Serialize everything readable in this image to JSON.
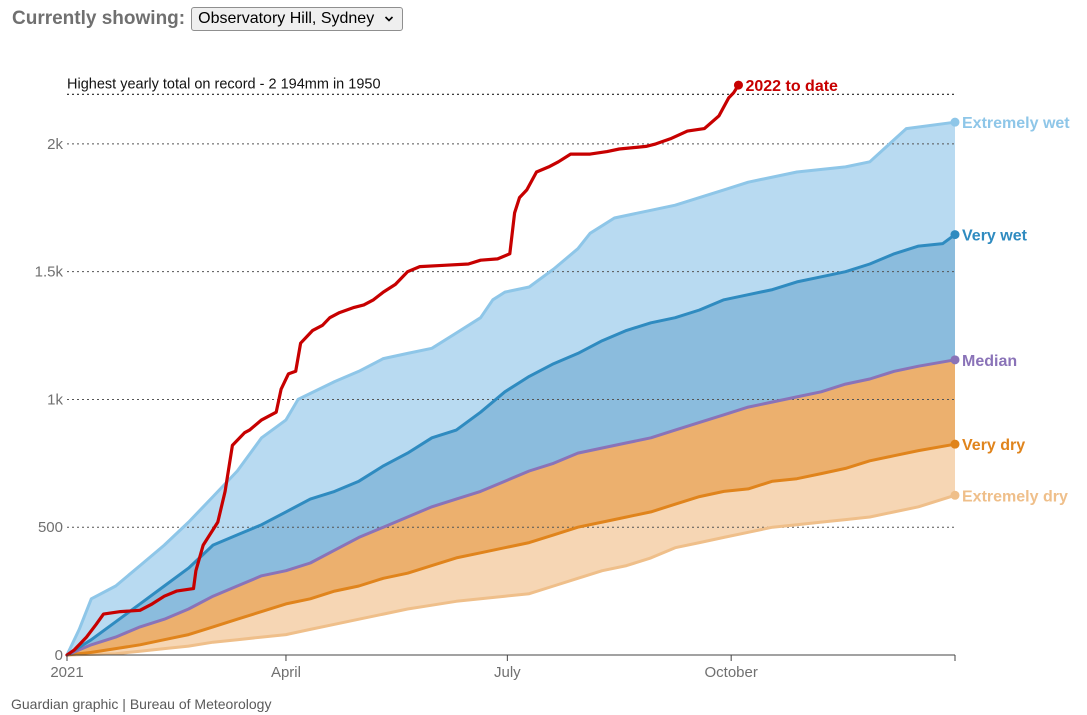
{
  "header": {
    "label": "Currently showing:",
    "selected_location": "Observatory Hill, Sydney"
  },
  "source": "Guardian graphic | Bureau of Meteorology",
  "colors": {
    "extremely_wet": "#8ec6e8",
    "extremely_wet_fill": "#b8daf1",
    "very_wet": "#2f8bc0",
    "very_wet_fill": "#8bbcdd",
    "median": "#8a73b8",
    "very_dry": "#e0841c",
    "very_dry_fill": "#ecb06e",
    "extremely_dry": "#efbf8a",
    "extremely_dry_fill": "#f6d6b4",
    "current": "#c70000",
    "grid": "#555555",
    "axis_text": "#707070"
  },
  "chart_data": {
    "type": "area",
    "x_unit": "day of year",
    "xlim": [
      0,
      365
    ],
    "ylim": [
      0,
      2250
    ],
    "x_ticks": [
      {
        "value": 0,
        "label": "2021"
      },
      {
        "value": 90,
        "label": "April"
      },
      {
        "value": 181,
        "label": "July"
      },
      {
        "value": 273,
        "label": "October"
      }
    ],
    "y_ticks": [
      {
        "value": 0,
        "label": "0"
      },
      {
        "value": 500,
        "label": "500"
      },
      {
        "value": 1000,
        "label": "1k"
      },
      {
        "value": 1500,
        "label": "1.5k"
      },
      {
        "value": 2000,
        "label": "2k"
      }
    ],
    "record": {
      "value": 2194,
      "label": "Highest yearly total on record - 2 194mm in 1950"
    },
    "series": [
      {
        "key": "extremely_wet",
        "name": "Extremely wet",
        "points": [
          [
            0,
            0
          ],
          [
            5,
            100
          ],
          [
            10,
            220
          ],
          [
            20,
            270
          ],
          [
            30,
            350
          ],
          [
            40,
            430
          ],
          [
            50,
            520
          ],
          [
            60,
            620
          ],
          [
            70,
            720
          ],
          [
            80,
            850
          ],
          [
            90,
            920
          ],
          [
            95,
            1000
          ],
          [
            110,
            1070
          ],
          [
            120,
            1110
          ],
          [
            130,
            1160
          ],
          [
            140,
            1180
          ],
          [
            150,
            1200
          ],
          [
            160,
            1260
          ],
          [
            170,
            1320
          ],
          [
            175,
            1390
          ],
          [
            180,
            1420
          ],
          [
            190,
            1440
          ],
          [
            200,
            1510
          ],
          [
            210,
            1590
          ],
          [
            215,
            1650
          ],
          [
            225,
            1710
          ],
          [
            240,
            1740
          ],
          [
            250,
            1760
          ],
          [
            260,
            1790
          ],
          [
            270,
            1820
          ],
          [
            280,
            1850
          ],
          [
            290,
            1870
          ],
          [
            300,
            1890
          ],
          [
            320,
            1910
          ],
          [
            330,
            1930
          ],
          [
            345,
            2060
          ],
          [
            365,
            2085
          ]
        ]
      },
      {
        "key": "very_wet",
        "name": "Very wet",
        "points": [
          [
            0,
            0
          ],
          [
            10,
            60
          ],
          [
            20,
            130
          ],
          [
            30,
            200
          ],
          [
            40,
            270
          ],
          [
            50,
            340
          ],
          [
            60,
            430
          ],
          [
            70,
            470
          ],
          [
            80,
            510
          ],
          [
            90,
            560
          ],
          [
            100,
            610
          ],
          [
            110,
            640
          ],
          [
            120,
            680
          ],
          [
            130,
            740
          ],
          [
            140,
            790
          ],
          [
            150,
            850
          ],
          [
            160,
            880
          ],
          [
            170,
            950
          ],
          [
            180,
            1030
          ],
          [
            190,
            1090
          ],
          [
            200,
            1140
          ],
          [
            210,
            1180
          ],
          [
            220,
            1230
          ],
          [
            230,
            1270
          ],
          [
            240,
            1300
          ],
          [
            250,
            1320
          ],
          [
            260,
            1350
          ],
          [
            270,
            1390
          ],
          [
            280,
            1410
          ],
          [
            290,
            1430
          ],
          [
            300,
            1460
          ],
          [
            310,
            1480
          ],
          [
            320,
            1500
          ],
          [
            330,
            1530
          ],
          [
            340,
            1570
          ],
          [
            350,
            1600
          ],
          [
            360,
            1610
          ],
          [
            365,
            1645
          ]
        ]
      },
      {
        "key": "median",
        "name": "Median",
        "points": [
          [
            0,
            0
          ],
          [
            10,
            40
          ],
          [
            20,
            70
          ],
          [
            30,
            110
          ],
          [
            40,
            140
          ],
          [
            50,
            180
          ],
          [
            60,
            230
          ],
          [
            70,
            270
          ],
          [
            80,
            310
          ],
          [
            90,
            330
          ],
          [
            100,
            360
          ],
          [
            110,
            410
          ],
          [
            120,
            460
          ],
          [
            130,
            500
          ],
          [
            140,
            540
          ],
          [
            150,
            580
          ],
          [
            160,
            610
          ],
          [
            170,
            640
          ],
          [
            180,
            680
          ],
          [
            190,
            720
          ],
          [
            200,
            750
          ],
          [
            210,
            790
          ],
          [
            220,
            810
          ],
          [
            230,
            830
          ],
          [
            240,
            850
          ],
          [
            250,
            880
          ],
          [
            260,
            910
          ],
          [
            270,
            940
          ],
          [
            280,
            970
          ],
          [
            290,
            990
          ],
          [
            300,
            1010
          ],
          [
            310,
            1030
          ],
          [
            320,
            1060
          ],
          [
            330,
            1080
          ],
          [
            340,
            1110
          ],
          [
            350,
            1130
          ],
          [
            365,
            1155
          ]
        ]
      },
      {
        "key": "very_dry",
        "name": "Very dry",
        "points": [
          [
            0,
            0
          ],
          [
            10,
            10
          ],
          [
            20,
            25
          ],
          [
            30,
            40
          ],
          [
            40,
            60
          ],
          [
            50,
            80
          ],
          [
            60,
            110
          ],
          [
            70,
            140
          ],
          [
            80,
            170
          ],
          [
            90,
            200
          ],
          [
            100,
            220
          ],
          [
            110,
            250
          ],
          [
            120,
            270
          ],
          [
            130,
            300
          ],
          [
            140,
            320
          ],
          [
            150,
            350
          ],
          [
            160,
            380
          ],
          [
            170,
            400
          ],
          [
            180,
            420
          ],
          [
            190,
            440
          ],
          [
            200,
            470
          ],
          [
            210,
            500
          ],
          [
            220,
            520
          ],
          [
            230,
            540
          ],
          [
            240,
            560
          ],
          [
            250,
            590
          ],
          [
            260,
            620
          ],
          [
            270,
            640
          ],
          [
            280,
            650
          ],
          [
            290,
            680
          ],
          [
            300,
            690
          ],
          [
            310,
            710
          ],
          [
            320,
            730
          ],
          [
            330,
            760
          ],
          [
            340,
            780
          ],
          [
            350,
            800
          ],
          [
            365,
            825
          ]
        ]
      },
      {
        "key": "extremely_dry",
        "name": "Extremely dry",
        "points": [
          [
            0,
            0
          ],
          [
            20,
            5
          ],
          [
            30,
            15
          ],
          [
            40,
            25
          ],
          [
            50,
            35
          ],
          [
            60,
            50
          ],
          [
            70,
            60
          ],
          [
            80,
            70
          ],
          [
            90,
            80
          ],
          [
            100,
            100
          ],
          [
            110,
            120
          ],
          [
            120,
            140
          ],
          [
            130,
            160
          ],
          [
            140,
            180
          ],
          [
            150,
            195
          ],
          [
            160,
            210
          ],
          [
            170,
            220
          ],
          [
            180,
            230
          ],
          [
            190,
            240
          ],
          [
            200,
            270
          ],
          [
            210,
            300
          ],
          [
            220,
            330
          ],
          [
            230,
            350
          ],
          [
            240,
            380
          ],
          [
            250,
            420
          ],
          [
            260,
            440
          ],
          [
            270,
            460
          ],
          [
            280,
            480
          ],
          [
            290,
            500
          ],
          [
            300,
            510
          ],
          [
            310,
            520
          ],
          [
            320,
            530
          ],
          [
            330,
            540
          ],
          [
            340,
            560
          ],
          [
            350,
            580
          ],
          [
            365,
            625
          ]
        ]
      },
      {
        "key": "current",
        "name": "2022 to date",
        "points": [
          [
            0,
            0
          ],
          [
            3,
            20
          ],
          [
            8,
            70
          ],
          [
            12,
            120
          ],
          [
            15,
            160
          ],
          [
            22,
            170
          ],
          [
            30,
            175
          ],
          [
            35,
            200
          ],
          [
            40,
            230
          ],
          [
            45,
            250
          ],
          [
            52,
            260
          ],
          [
            53,
            330
          ],
          [
            56,
            430
          ],
          [
            62,
            520
          ],
          [
            65,
            640
          ],
          [
            68,
            820
          ],
          [
            73,
            870
          ],
          [
            75,
            880
          ],
          [
            80,
            920
          ],
          [
            86,
            950
          ],
          [
            88,
            1040
          ],
          [
            91,
            1100
          ],
          [
            94,
            1110
          ],
          [
            96,
            1220
          ],
          [
            101,
            1270
          ],
          [
            105,
            1290
          ],
          [
            108,
            1320
          ],
          [
            112,
            1340
          ],
          [
            118,
            1360
          ],
          [
            122,
            1370
          ],
          [
            126,
            1390
          ],
          [
            130,
            1420
          ],
          [
            135,
            1450
          ],
          [
            140,
            1500
          ],
          [
            145,
            1520
          ],
          [
            155,
            1525
          ],
          [
            165,
            1530
          ],
          [
            170,
            1545
          ],
          [
            177,
            1550
          ],
          [
            182,
            1570
          ],
          [
            184,
            1730
          ],
          [
            186,
            1790
          ],
          [
            189,
            1820
          ],
          [
            193,
            1890
          ],
          [
            198,
            1910
          ],
          [
            202,
            1930
          ],
          [
            207,
            1960
          ],
          [
            215,
            1960
          ],
          [
            222,
            1970
          ],
          [
            227,
            1980
          ],
          [
            238,
            1990
          ],
          [
            242,
            2000
          ],
          [
            248,
            2020
          ],
          [
            255,
            2050
          ],
          [
            262,
            2060
          ],
          [
            268,
            2110
          ],
          [
            272,
            2180
          ],
          [
            274,
            2200
          ],
          [
            276,
            2230
          ]
        ]
      }
    ],
    "end_labels": [
      {
        "series": "current",
        "text": "2022 to date"
      },
      {
        "series": "extremely_wet",
        "text": "Extremely wet"
      },
      {
        "series": "very_wet",
        "text": "Very wet"
      },
      {
        "series": "median",
        "text": "Median"
      },
      {
        "series": "very_dry",
        "text": "Very dry"
      },
      {
        "series": "extremely_dry",
        "text": "Extremely dry"
      }
    ]
  }
}
